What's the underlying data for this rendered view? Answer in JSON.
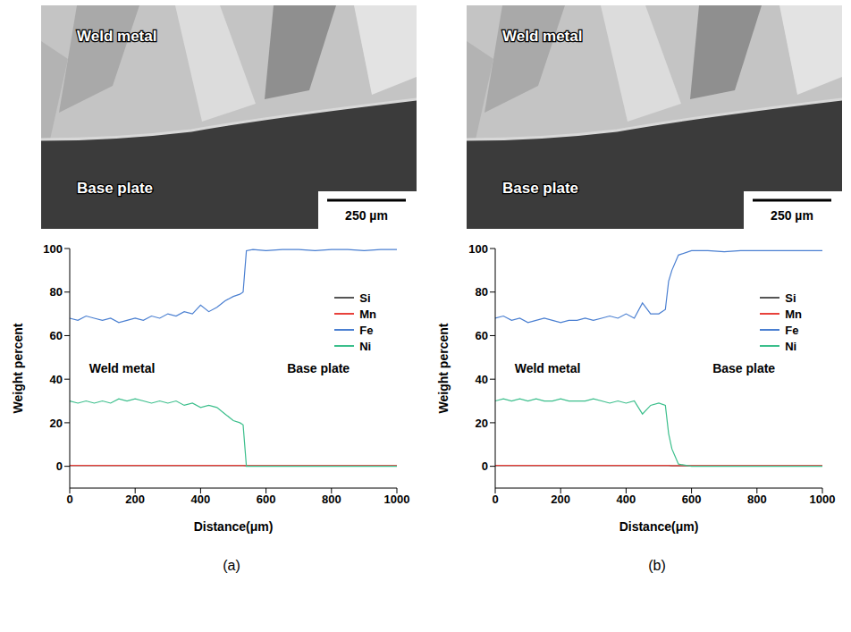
{
  "panel_labels": [
    "(a)",
    "(b)"
  ],
  "micrographs": [
    {
      "labels": [
        "Weld metal",
        "Base plate"
      ],
      "scale_bar": "250 µm"
    },
    {
      "labels": [
        "Weld metal",
        "Base plate"
      ],
      "scale_bar": "250 µm"
    }
  ],
  "chart_data": [
    {
      "type": "line",
      "x_label": "Distance(μm)",
      "y_label": "Weight percent",
      "xlim": [
        0,
        1000
      ],
      "xticks": [
        0,
        200,
        400,
        600,
        800,
        1000
      ],
      "ylim": [
        -10,
        100
      ],
      "yticks": [
        0,
        20,
        40,
        60,
        80,
        100
      ],
      "legend": "right",
      "annotations": [
        {
          "text": "Weld metal",
          "x": 160,
          "y": 45
        },
        {
          "text": "Base plate",
          "x": 760,
          "y": 45
        }
      ],
      "x": [
        0,
        25,
        50,
        75,
        100,
        125,
        150,
        175,
        200,
        225,
        250,
        275,
        300,
        325,
        350,
        375,
        400,
        425,
        450,
        475,
        500,
        520,
        530,
        540,
        560,
        600,
        650,
        700,
        750,
        800,
        850,
        900,
        950,
        1000
      ],
      "series": [
        {
          "name": "Si",
          "color": "#555555",
          "values": [
            0.3,
            0.3,
            0.3,
            0.3,
            0.3,
            0.3,
            0.3,
            0.3,
            0.3,
            0.3,
            0.3,
            0.3,
            0.3,
            0.3,
            0.3,
            0.3,
            0.3,
            0.3,
            0.3,
            0.3,
            0.3,
            0.3,
            0.3,
            0.2,
            0.2,
            0.2,
            0.2,
            0.2,
            0.2,
            0.2,
            0.2,
            0.2,
            0.2,
            0.2
          ]
        },
        {
          "name": "Mn",
          "color": "#e8413b",
          "values": [
            0.4,
            0.4,
            0.4,
            0.4,
            0.4,
            0.4,
            0.4,
            0.4,
            0.4,
            0.4,
            0.4,
            0.4,
            0.4,
            0.4,
            0.4,
            0.4,
            0.4,
            0.4,
            0.4,
            0.4,
            0.4,
            0.4,
            0.4,
            0.3,
            0.3,
            0.3,
            0.3,
            0.3,
            0.3,
            0.3,
            0.3,
            0.3,
            0.3,
            0.3
          ]
        },
        {
          "name": "Fe",
          "color": "#4a7fd1",
          "values": [
            68,
            67,
            69,
            68,
            67,
            68,
            66,
            67,
            68,
            67,
            69,
            68,
            70,
            69,
            71,
            70,
            74,
            71,
            73,
            76,
            78,
            79,
            80,
            99,
            99.5,
            99,
            99.5,
            99.5,
            99,
            99.5,
            99.5,
            99,
            99.5,
            99.5
          ]
        },
        {
          "name": "Ni",
          "color": "#3cbf8c",
          "values": [
            30,
            29,
            30,
            29,
            30,
            29,
            31,
            30,
            31,
            30,
            29,
            30,
            29,
            30,
            28,
            29,
            27,
            28,
            27,
            24,
            21,
            20,
            19,
            0,
            0,
            0,
            0,
            0,
            0,
            0,
            0,
            0,
            0,
            0
          ]
        }
      ]
    },
    {
      "type": "line",
      "x_label": "Distance(μm)",
      "y_label": "Weight percent",
      "xlim": [
        0,
        1000
      ],
      "xticks": [
        0,
        200,
        400,
        600,
        800,
        1000
      ],
      "ylim": [
        -10,
        100
      ],
      "yticks": [
        0,
        20,
        40,
        60,
        80,
        100
      ],
      "legend": "right",
      "annotations": [
        {
          "text": "Weld metal",
          "x": 160,
          "y": 45
        },
        {
          "text": "Base plate",
          "x": 760,
          "y": 45
        }
      ],
      "x": [
        0,
        25,
        50,
        75,
        100,
        125,
        150,
        175,
        200,
        225,
        250,
        275,
        300,
        325,
        350,
        375,
        400,
        425,
        450,
        475,
        500,
        520,
        530,
        540,
        560,
        600,
        650,
        700,
        750,
        800,
        850,
        900,
        950,
        1000
      ],
      "series": [
        {
          "name": "Si",
          "color": "#555555",
          "values": [
            0.3,
            0.3,
            0.3,
            0.3,
            0.3,
            0.3,
            0.3,
            0.3,
            0.3,
            0.3,
            0.3,
            0.3,
            0.3,
            0.3,
            0.3,
            0.3,
            0.3,
            0.3,
            0.3,
            0.3,
            0.3,
            0.3,
            0.3,
            0.2,
            0.2,
            0.2,
            0.2,
            0.2,
            0.2,
            0.2,
            0.2,
            0.2,
            0.2,
            0.2
          ]
        },
        {
          "name": "Mn",
          "color": "#e8413b",
          "values": [
            0.4,
            0.4,
            0.4,
            0.4,
            0.4,
            0.4,
            0.4,
            0.4,
            0.4,
            0.4,
            0.4,
            0.4,
            0.4,
            0.4,
            0.4,
            0.4,
            0.4,
            0.4,
            0.4,
            0.4,
            0.4,
            0.4,
            0.4,
            0.3,
            0.3,
            0.3,
            0.3,
            0.3,
            0.3,
            0.3,
            0.3,
            0.3,
            0.3,
            0.3
          ]
        },
        {
          "name": "Fe",
          "color": "#4a7fd1",
          "values": [
            68,
            69,
            67,
            68,
            66,
            67,
            68,
            67,
            66,
            67,
            67,
            68,
            67,
            68,
            69,
            68,
            70,
            68,
            75,
            70,
            70,
            72,
            85,
            90,
            97,
            99,
            99,
            98.5,
            99,
            99,
            99,
            99,
            99,
            99
          ]
        },
        {
          "name": "Ni",
          "color": "#3cbf8c",
          "values": [
            30,
            31,
            30,
            31,
            30,
            31,
            30,
            30,
            31,
            30,
            30,
            30,
            31,
            30,
            29,
            30,
            29,
            30,
            24,
            28,
            29,
            28,
            15,
            8,
            1,
            0,
            0,
            0,
            0,
            0,
            0,
            0,
            0,
            0
          ]
        }
      ]
    }
  ]
}
